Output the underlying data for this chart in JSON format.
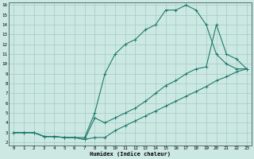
{
  "xlabel": "Humidex (Indice chaleur)",
  "xlim": [
    0,
    23
  ],
  "ylim": [
    2,
    16
  ],
  "xticks": [
    0,
    1,
    2,
    3,
    4,
    5,
    6,
    7,
    8,
    9,
    10,
    11,
    12,
    13,
    14,
    15,
    16,
    17,
    18,
    19,
    20,
    21,
    22,
    23
  ],
  "yticks": [
    2,
    3,
    4,
    5,
    6,
    7,
    8,
    9,
    10,
    11,
    12,
    13,
    14,
    15,
    16
  ],
  "bg_color": "#cce8e2",
  "grid_color": "#aacfc8",
  "line_color": "#1f7a6e",
  "curve1_x": [
    0,
    1,
    2,
    3,
    4,
    5,
    6,
    7,
    8,
    9,
    10,
    11,
    12,
    13,
    14,
    15,
    16,
    17,
    18,
    19,
    20,
    21,
    22,
    23
  ],
  "curve1_y": [
    3,
    3,
    3,
    2.6,
    2.6,
    2.5,
    2.5,
    2.5,
    5.0,
    9.0,
    11,
    12,
    12.5,
    13.5,
    14,
    15.5,
    15.5,
    16,
    15.5,
    14,
    11,
    10,
    9.5,
    9.5
  ],
  "curve2_x": [
    0,
    1,
    2,
    3,
    4,
    5,
    6,
    7,
    8,
    9,
    10,
    11,
    12,
    13,
    14,
    15,
    16,
    17,
    18,
    19,
    20,
    21,
    22,
    23
  ],
  "curve2_y": [
    3,
    3,
    3,
    2.6,
    2.6,
    2.5,
    2.5,
    2.3,
    2.5,
    2.5,
    3.2,
    3.7,
    4.2,
    4.7,
    5.2,
    5.7,
    6.2,
    6.7,
    7.2,
    7.7,
    8.3,
    8.7,
    9.2,
    9.5
  ],
  "curve3_x": [
    0,
    1,
    2,
    3,
    4,
    5,
    6,
    7,
    8,
    9,
    10,
    11,
    12,
    13,
    14,
    15,
    16,
    17,
    18,
    19,
    20,
    21,
    22,
    23
  ],
  "curve3_y": [
    3,
    3,
    3,
    2.6,
    2.6,
    2.5,
    2.5,
    2.3,
    4.5,
    4.0,
    4.5,
    5.0,
    5.5,
    6.2,
    7.0,
    7.8,
    8.3,
    9.0,
    9.5,
    9.7,
    14,
    11.0,
    10.5,
    9.5
  ]
}
